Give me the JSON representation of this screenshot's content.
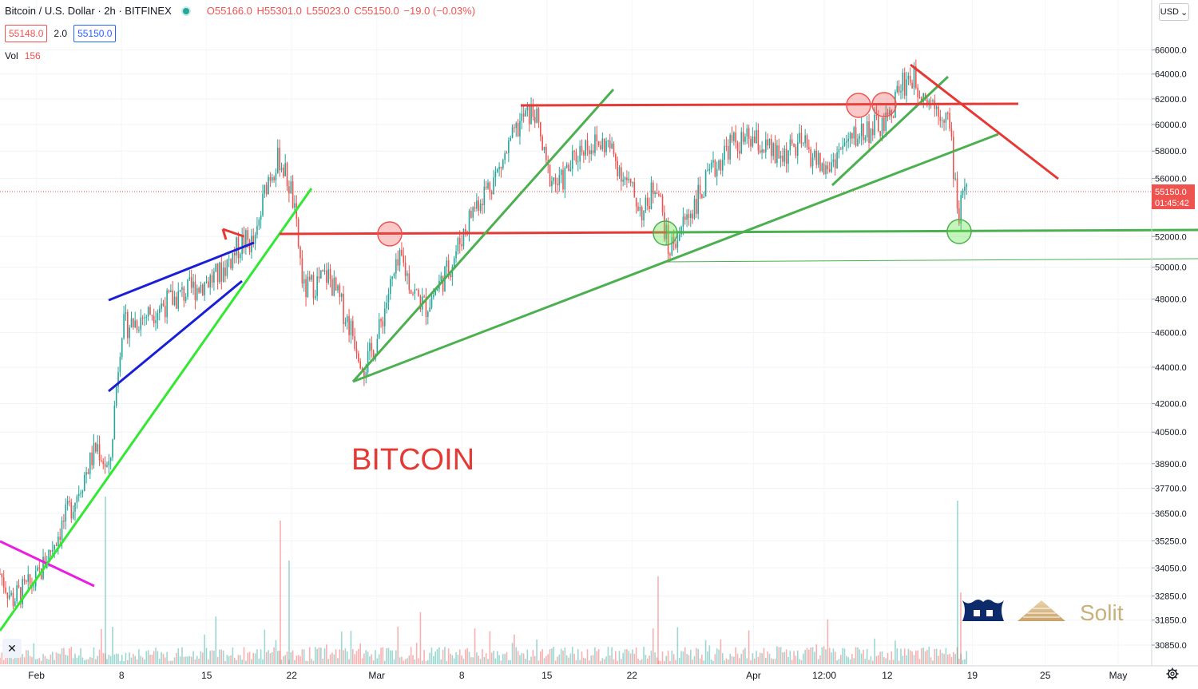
{
  "header": {
    "title": "Bitcoin / U.S. Dollar · 2h · BITFINEX",
    "ohlc": {
      "open": "O55166.0",
      "high": "H55301.0",
      "low": "L55023.0",
      "close": "C55150.0",
      "change": "−19.0 (−0.03%)"
    },
    "sell_price": "55148.0",
    "spread": "2.0",
    "buy_price": "55150.0",
    "volume_label": "Vol",
    "volume_value": "156",
    "currency": "USD",
    "currency_chevron": "⌄"
  },
  "annotation_text": "BITCOIN",
  "watermark": {
    "brand": "Solit"
  },
  "price_labels": {
    "last_price": "55150.0",
    "countdown": "01:45:42"
  },
  "icons": {
    "close": "close-icon",
    "settings": "gear-icon",
    "visibility": "eye-icon"
  },
  "colors": {
    "up": "#26a69a",
    "down": "#ef5350",
    "annotation": "#e53935",
    "trend_green": "#4caf50",
    "wedge_blue": "#1a1fd6",
    "lime": "#33e833",
    "magenta": "#e91ee0"
  },
  "chart_data": {
    "type": "candlestick",
    "symbol": "Bitcoin / U.S. Dollar",
    "interval": "2h",
    "exchange": "BITFINEX",
    "x_ticks": [
      "Feb",
      "8",
      "15",
      "22",
      "Mar",
      "8",
      "15",
      "22",
      "Apr",
      "12:00",
      "12",
      "19",
      "25",
      "May"
    ],
    "y_ticks": [
      "30850.0",
      "31850.0",
      "32850.0",
      "34050.0",
      "35250.0",
      "36500.0",
      "37700.0",
      "38900.0",
      "40500.0",
      "42000.0",
      "44000.0",
      "46000.0",
      "48000.0",
      "50000.0",
      "52000.0",
      "56000.0",
      "58000.0",
      "60000.0",
      "62000.0",
      "64000.0",
      "66000.0"
    ],
    "y_scale": "log",
    "price_path": [
      {
        "date": "2021-01-29",
        "price": 33800
      },
      {
        "date": "2021-01-30",
        "price": 32700
      },
      {
        "date": "2021-02-01",
        "price": 33500
      },
      {
        "date": "2021-02-04",
        "price": 37000
      },
      {
        "date": "2021-02-06",
        "price": 39800
      },
      {
        "date": "2021-02-07",
        "price": 38400
      },
      {
        "date": "2021-02-08",
        "price": 46300
      },
      {
        "date": "2021-02-09",
        "price": 46600
      },
      {
        "date": "2021-02-11",
        "price": 47500
      },
      {
        "date": "2021-02-14",
        "price": 48700
      },
      {
        "date": "2021-02-16",
        "price": 49500
      },
      {
        "date": "2021-02-18",
        "price": 51700
      },
      {
        "date": "2021-02-19",
        "price": 51500
      },
      {
        "date": "2021-02-20",
        "price": 56000
      },
      {
        "date": "2021-02-21",
        "price": 57500
      },
      {
        "date": "2021-02-22",
        "price": 55000
      },
      {
        "date": "2021-02-23",
        "price": 48500
      },
      {
        "date": "2021-02-25",
        "price": 49500
      },
      {
        "date": "2021-02-27",
        "price": 46000
      },
      {
        "date": "2021-02-28",
        "price": 44000
      },
      {
        "date": "2021-03-01",
        "price": 45500
      },
      {
        "date": "2021-03-02",
        "price": 48500
      },
      {
        "date": "2021-03-03",
        "price": 50500
      },
      {
        "date": "2021-03-04",
        "price": 48500
      },
      {
        "date": "2021-03-05",
        "price": 47500
      },
      {
        "date": "2021-03-07",
        "price": 50000
      },
      {
        "date": "2021-03-09",
        "price": 54000
      },
      {
        "date": "2021-03-11",
        "price": 56500
      },
      {
        "date": "2021-03-13",
        "price": 60500
      },
      {
        "date": "2021-03-14",
        "price": 61000
      },
      {
        "date": "2021-03-15",
        "price": 56500
      },
      {
        "date": "2021-03-16",
        "price": 55500
      },
      {
        "date": "2021-03-18",
        "price": 58500
      },
      {
        "date": "2021-03-20",
        "price": 58500
      },
      {
        "date": "2021-03-22",
        "price": 55000
      },
      {
        "date": "2021-03-23",
        "price": 53500
      },
      {
        "date": "2021-03-24",
        "price": 56000
      },
      {
        "date": "2021-03-25",
        "price": 51000
      },
      {
        "date": "2021-03-26",
        "price": 52500
      },
      {
        "date": "2021-03-28",
        "price": 55500
      },
      {
        "date": "2021-03-30",
        "price": 58500
      },
      {
        "date": "2021-04-01",
        "price": 58800
      },
      {
        "date": "2021-04-03",
        "price": 57500
      },
      {
        "date": "2021-04-05",
        "price": 58500
      },
      {
        "date": "2021-04-07",
        "price": 56500
      },
      {
        "date": "2021-04-08",
        "price": 58000
      },
      {
        "date": "2021-04-10",
        "price": 59500
      },
      {
        "date": "2021-04-12",
        "price": 60000
      },
      {
        "date": "2021-04-13",
        "price": 63000
      },
      {
        "date": "2021-04-14",
        "price": 63800
      },
      {
        "date": "2021-04-15",
        "price": 62500
      },
      {
        "date": "2021-04-16",
        "price": 61500
      },
      {
        "date": "2021-04-17",
        "price": 60500
      },
      {
        "date": "2021-04-18",
        "price": 52500
      },
      {
        "date": "2021-04-18",
        "price": 55150
      }
    ]
  }
}
